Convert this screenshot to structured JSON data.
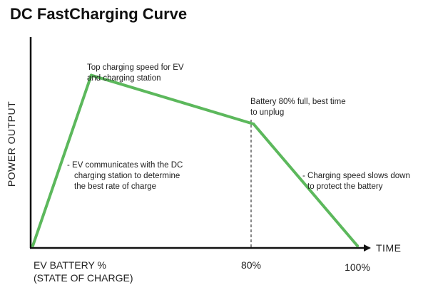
{
  "chart_data": {
    "type": "line",
    "title": "DC FastCharging Curve",
    "ylabel": "POWER OUTPUT",
    "xlabel_lines": [
      "EV BATTERY %",
      "(STATE OF CHARGE)"
    ],
    "x_axis_end_label": "TIME",
    "x_ticks": [
      "80%",
      "100%"
    ],
    "xlim": [
      0,
      100
    ],
    "ylim": [
      0,
      100
    ],
    "grid": false,
    "colors": {
      "line": "#5cb85c",
      "axis": "#111111"
    },
    "series": [
      {
        "x": [
          0,
          18,
          68,
          100
        ],
        "y": [
          0,
          84,
          60,
          0
        ]
      }
    ],
    "annotations": [
      {
        "lines": [
          "Top charging speed for EV",
          "and charging station"
        ]
      },
      {
        "lines": [
          "Battery 80% full, best time",
          "to unplug"
        ]
      },
      {
        "lines": [
          "- EV communicates with the DC",
          "charging station to determine",
          "the best rate of charge"
        ]
      },
      {
        "lines": [
          "- Charging speed slows down",
          "to protect the battery"
        ]
      }
    ]
  }
}
